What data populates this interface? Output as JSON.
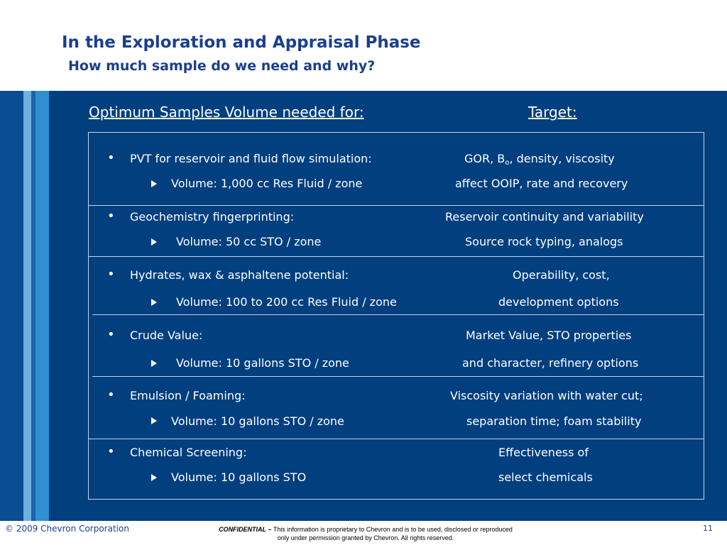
{
  "slide": {
    "title": "In the Exploration and Appraisal Phase",
    "subtitle": "How much sample do we need and why?"
  },
  "table": {
    "header_left": "Optimum Samples Volume needed for:",
    "header_right": "Target:",
    "rows": [
      {
        "purpose": "PVT for reservoir and fluid flow simulation:",
        "volume": "Volume: 1,000 cc Res Fluid / zone",
        "target_1_prefix": "GOR, B",
        "target_1_sub": "o",
        "target_1_suffix": ", density, viscosity",
        "target_2": "affect OOIP, rate and recovery"
      },
      {
        "purpose": "Geochemistry fingerprinting:",
        "volume": "Volume: 50 cc STO / zone",
        "target_1": "Reservoir continuity and variability",
        "target_2": "Source rock typing, analogs"
      },
      {
        "purpose": "Hydrates, wax & asphaltene potential:",
        "volume": "Volume: 100 to 200 cc Res Fluid / zone",
        "target_1": "Operability, cost,",
        "target_2": "development options"
      },
      {
        "purpose": "Crude Value:",
        "volume": "Volume: 10 gallons STO / zone",
        "target_1": "Market Value, STO properties",
        "target_2": "and character, refinery options"
      },
      {
        "purpose": "Emulsion / Foaming:",
        "volume": "Volume: 10 gallons STO / zone",
        "target_1": "Viscosity variation with water cut;",
        "target_2": "separation time; foam stability"
      },
      {
        "purpose": "Chemical Screening:",
        "volume": "Volume: 10 gallons STO",
        "target_1": "Effectiveness of",
        "target_2": "select chemicals"
      }
    ]
  },
  "footer": {
    "copyright": "© 2009 Chevron Corporation",
    "confidential_label": "CONFIDENTIAL –",
    "confidential_text_1": "This information is proprietary to Chevron and is to be used, disclosed or reproduced",
    "confidential_text_2": "only under permission granted by Chevron.  All rights reserved.",
    "page_number": "11"
  },
  "colors": {
    "title": "#1b3f8f",
    "panel_background": "#023f7f",
    "text": "#ffffff",
    "stripe_light": "#6fb0e0",
    "stripe_mid": "#2f8fd1"
  }
}
